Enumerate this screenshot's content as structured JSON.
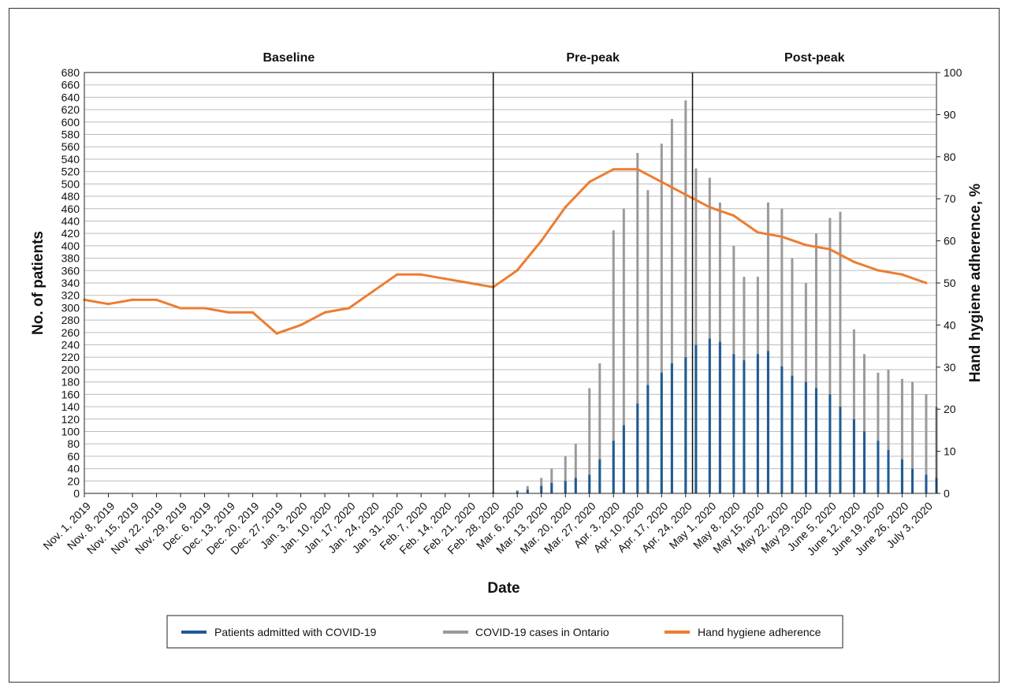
{
  "chart_data": {
    "type": "bar+line",
    "phases": [
      "Baseline",
      "Pre-peak",
      "Post-peak"
    ],
    "xlabel": "Date",
    "ylabel_left": "No. of patients",
    "ylabel_right": "Hand hygiene adherence, %",
    "ylim_left": [
      0,
      680
    ],
    "ylim_right": [
      0,
      100
    ],
    "y_left_ticks": [
      "0",
      "20",
      "40",
      "60",
      "80",
      "100",
      "120",
      "140",
      "160",
      "180",
      "200",
      "220",
      "240",
      "260",
      "280",
      "300",
      "320",
      "340",
      "360",
      "380",
      "400",
      "420",
      "440",
      "460",
      "480",
      "500",
      "520",
      "540",
      "560",
      "580",
      "600",
      "620",
      "640",
      "660",
      "680"
    ],
    "y_right_ticks": [
      "0",
      "10",
      "20",
      "30",
      "40",
      "50",
      "60",
      "70",
      "80",
      "90",
      "100"
    ],
    "x_tick_labels": [
      "Nov. 1, 2019",
      "Nov. 8, 2019",
      "Nov. 15, 2019",
      "Nov. 22, 2019",
      "Nov. 29, 2019",
      "Dec. 6, 2019",
      "Dec. 13, 2019",
      "Dec. 20, 2019",
      "Dec. 27, 2019",
      "Jan. 3, 2020",
      "Jan. 10, 2020",
      "Jan. 17, 2020",
      "Jan. 24, 2020",
      "Jan. 31, 2020",
      "Feb. 7, 2020",
      "Feb. 14, 2020",
      "Feb. 21, 2020",
      "Feb. 28, 2020",
      "Mar. 6, 2020",
      "Mar. 13, 2020",
      "Mar. 20, 2020",
      "Mar. 27, 2020",
      "Apr. 3, 2020",
      "Apr. 10, 2020",
      "Apr. 17, 2020",
      "Apr. 24, 2020",
      "May 1, 2020",
      "May 8, 2020",
      "May 15, 2020",
      "May 22, 2020",
      "May 29, 2020",
      "June 5, 2020",
      "June 12, 2020",
      "June 19, 2020",
      "June 26, 2020",
      "July 3, 2020"
    ],
    "phase_boundaries": [
      "Feb. 28, 2020",
      "Apr. 26, 2020"
    ],
    "grid": true,
    "legend_position": "bottom",
    "series": [
      {
        "name": "Patients admitted with COVID-19",
        "kind": "bar",
        "axis": "left",
        "color": "#1f5b95",
        "x": [
          "Mar. 6, 2020",
          "Mar. 9, 2020",
          "Mar. 13, 2020",
          "Mar. 16, 2020",
          "Mar. 20, 2020",
          "Mar. 23, 2020",
          "Mar. 27, 2020",
          "Mar. 30, 2020",
          "Apr. 3, 2020",
          "Apr. 6, 2020",
          "Apr. 10, 2020",
          "Apr. 13, 2020",
          "Apr. 17, 2020",
          "Apr. 20, 2020",
          "Apr. 24, 2020",
          "Apr. 27, 2020",
          "May 1, 2020",
          "May 4, 2020",
          "May 8, 2020",
          "May 11, 2020",
          "May 15, 2020",
          "May 18, 2020",
          "May 22, 2020",
          "May 25, 2020",
          "May 29, 2020",
          "June 1, 2020",
          "June 5, 2020",
          "June 8, 2020",
          "June 12, 2020",
          "June 15, 2020",
          "June 19, 2020",
          "June 22, 2020",
          "June 26, 2020",
          "June 29, 2020",
          "July 3, 2020",
          "July 6, 2020"
        ],
        "values": [
          3,
          6,
          12,
          17,
          20,
          25,
          30,
          55,
          85,
          110,
          145,
          175,
          195,
          210,
          220,
          240,
          250,
          245,
          225,
          215,
          225,
          230,
          205,
          190,
          180,
          170,
          160,
          140,
          120,
          100,
          85,
          70,
          55,
          40,
          30,
          25
        ]
      },
      {
        "name": "COVID-19 cases in Ontario",
        "kind": "bar",
        "axis": "left",
        "color": "#9a9a9a",
        "x": [
          "Feb. 28, 2020",
          "Mar. 6, 2020",
          "Mar. 9, 2020",
          "Mar. 13, 2020",
          "Mar. 16, 2020",
          "Mar. 20, 2020",
          "Mar. 23, 2020",
          "Mar. 27, 2020",
          "Mar. 30, 2020",
          "Apr. 3, 2020",
          "Apr. 6, 2020",
          "Apr. 10, 2020",
          "Apr. 13, 2020",
          "Apr. 17, 2020",
          "Apr. 20, 2020",
          "Apr. 24, 2020",
          "Apr. 27, 2020",
          "May 1, 2020",
          "May 4, 2020",
          "May 8, 2020",
          "May 11, 2020",
          "May 15, 2020",
          "May 18, 2020",
          "May 22, 2020",
          "May 25, 2020",
          "May 29, 2020",
          "June 1, 2020",
          "June 5, 2020",
          "June 8, 2020",
          "June 12, 2020",
          "June 15, 2020",
          "June 19, 2020",
          "June 22, 2020",
          "June 26, 2020",
          "June 29, 2020",
          "July 3, 2020",
          "July 6, 2020"
        ],
        "values": [
          2,
          5,
          12,
          25,
          40,
          60,
          80,
          170,
          210,
          425,
          460,
          550,
          490,
          565,
          605,
          635,
          525,
          510,
          470,
          400,
          350,
          350,
          470,
          460,
          380,
          340,
          420,
          445,
          455,
          265,
          225,
          195,
          200,
          185,
          180,
          160,
          140
        ]
      },
      {
        "name": "Hand hygiene adherence",
        "kind": "line",
        "axis": "right",
        "color": "#ed7d31",
        "x": [
          "Nov. 1, 2019",
          "Nov. 8, 2019",
          "Nov. 15, 2019",
          "Nov. 22, 2019",
          "Nov. 29, 2019",
          "Dec. 6, 2019",
          "Dec. 13, 2019",
          "Dec. 20, 2019",
          "Dec. 27, 2019",
          "Jan. 3, 2020",
          "Jan. 10, 2020",
          "Jan. 17, 2020",
          "Jan. 24, 2020",
          "Jan. 31, 2020",
          "Feb. 7, 2020",
          "Feb. 14, 2020",
          "Feb. 21, 2020",
          "Feb. 28, 2020",
          "Mar. 6, 2020",
          "Mar. 13, 2020",
          "Mar. 20, 2020",
          "Mar. 27, 2020",
          "Apr. 3, 2020",
          "Apr. 10, 2020",
          "Apr. 17, 2020",
          "Apr. 24, 2020",
          "May 1, 2020",
          "May 8, 2020",
          "May 15, 2020",
          "May 22, 2020",
          "May 29, 2020",
          "June 5, 2020",
          "June 12, 2020",
          "June 19, 2020",
          "June 26, 2020",
          "July 3, 2020"
        ],
        "values": [
          46,
          45,
          46,
          46,
          44,
          44,
          43,
          43,
          38,
          40,
          43,
          44,
          48,
          52,
          52,
          51,
          50,
          49,
          53,
          60,
          68,
          74,
          77,
          77,
          74,
          71,
          68,
          66,
          62,
          61,
          59,
          58,
          55,
          53,
          52,
          50
        ]
      }
    ]
  }
}
